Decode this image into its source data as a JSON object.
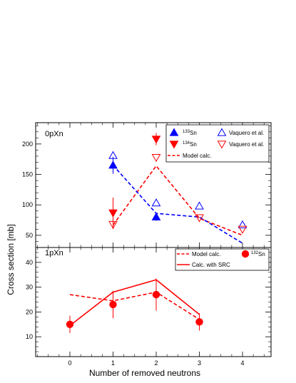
{
  "chart_data": [
    {
      "panel": "0pXn",
      "type": "scatter",
      "x_ticks": [
        0,
        1,
        2,
        3,
        4
      ],
      "ylim": [
        30,
        235
      ],
      "y_ticks": [
        50,
        100,
        150,
        200
      ],
      "series": [
        {
          "name": "133Sn",
          "nuclide": "133",
          "element": "Sn",
          "marker": "triangle-up-filled",
          "color": "#0000ff",
          "points": [
            {
              "x": 1,
              "y": 165,
              "err": 14
            },
            {
              "x": 2,
              "y": 80,
              "err": 6
            }
          ]
        },
        {
          "name": "134Sn",
          "nuclide": "134",
          "element": "Sn",
          "marker": "triangle-down-filled",
          "color": "#ff0000",
          "points": [
            {
              "x": 1,
              "y": 87,
              "err": 25
            },
            {
              "x": 2,
              "y": 208,
              "err": 10
            }
          ]
        },
        {
          "name": "Vaquero et al.",
          "marker": "triangle-up-open",
          "color": "#0000ff",
          "points": [
            {
              "x": 1,
              "y": 181
            },
            {
              "x": 2,
              "y": 103
            },
            {
              "x": 3,
              "y": 98
            },
            {
              "x": 4,
              "y": 67
            }
          ]
        },
        {
          "name": "Vaquero et al.",
          "marker": "triangle-down-open",
          "color": "#ff0000",
          "points": [
            {
              "x": 1,
              "y": 68,
              "err": 8
            },
            {
              "x": 2,
              "y": 178
            },
            {
              "x": 3,
              "y": 79
            },
            {
              "x": 4,
              "y": 60
            }
          ]
        },
        {
          "name": "Model calc.",
          "marker": "line-dashed",
          "color": "#ff0000",
          "points": [
            {
              "x": 1,
              "y": 67
            },
            {
              "x": 2,
              "y": 164
            },
            {
              "x": 3,
              "y": 78
            },
            {
              "x": 4,
              "y": 50
            }
          ]
        },
        {
          "name": "",
          "marker": "line-dashed",
          "color": "#0000ff",
          "points": [
            {
              "x": 1,
              "y": 165
            },
            {
              "x": 2,
              "y": 86
            },
            {
              "x": 3,
              "y": 80
            },
            {
              "x": 4,
              "y": 37
            }
          ]
        }
      ],
      "legend": [
        {
          "kind": "tri-up-filled",
          "color": "#0000ff",
          "sup": "133",
          "text": "Sn"
        },
        {
          "kind": "tri-up-open",
          "color": "#0000ff",
          "sup": "",
          "text": "Vaquero et al."
        },
        {
          "kind": "tri-down-filled",
          "color": "#ff0000",
          "sup": "134",
          "text": "Sn"
        },
        {
          "kind": "tri-down-open",
          "color": "#ff0000",
          "sup": "",
          "text": "Vaquero et al."
        },
        {
          "kind": "dashed",
          "color": "#ff0000",
          "sup": "",
          "text": "Model calc."
        }
      ]
    },
    {
      "panel": "1pXn",
      "type": "scatter",
      "x_ticks": [
        0,
        1,
        2,
        3,
        4
      ],
      "ylim": [
        2,
        46
      ],
      "y_ticks": [
        10,
        20,
        30,
        40
      ],
      "series": [
        {
          "name": "132Sn",
          "nuclide": "132",
          "element": "Sn",
          "marker": "circle-filled",
          "color": "#ff0000",
          "points": [
            {
              "x": 0,
              "y": 15,
              "err": 3.5
            },
            {
              "x": 1,
              "y": 23,
              "err": 5.5
            },
            {
              "x": 2,
              "y": 27,
              "err": 6.5
            },
            {
              "x": 3,
              "y": 16,
              "err": 3.5
            }
          ]
        },
        {
          "name": "Model calc.",
          "marker": "line-dashed",
          "color": "#ff0000",
          "points": [
            {
              "x": 0,
              "y": 27
            },
            {
              "x": 1,
              "y": 24.5
            },
            {
              "x": 2,
              "y": 28
            },
            {
              "x": 3,
              "y": 17
            }
          ]
        },
        {
          "name": "Calc. with SRC",
          "marker": "line-solid",
          "color": "#ff0000",
          "points": [
            {
              "x": 0,
              "y": 14.5
            },
            {
              "x": 1,
              "y": 28
            },
            {
              "x": 2,
              "y": 33
            },
            {
              "x": 3,
              "y": 19
            }
          ]
        }
      ],
      "legend": [
        {
          "kind": "dashed",
          "color": "#ff0000",
          "sup": "",
          "text": "Model calc."
        },
        {
          "kind": "circle",
          "color": "#ff0000",
          "sup": "132",
          "text": "Sn"
        },
        {
          "kind": "solid",
          "color": "#ff0000",
          "sup": "",
          "text": "Calc. with SRC"
        }
      ]
    }
  ],
  "labels": {
    "panel_top": "0pXn",
    "panel_bottom": "1pXn",
    "ylabel": "Cross section [mb]",
    "xlabel": "Number of removed neutrons"
  }
}
